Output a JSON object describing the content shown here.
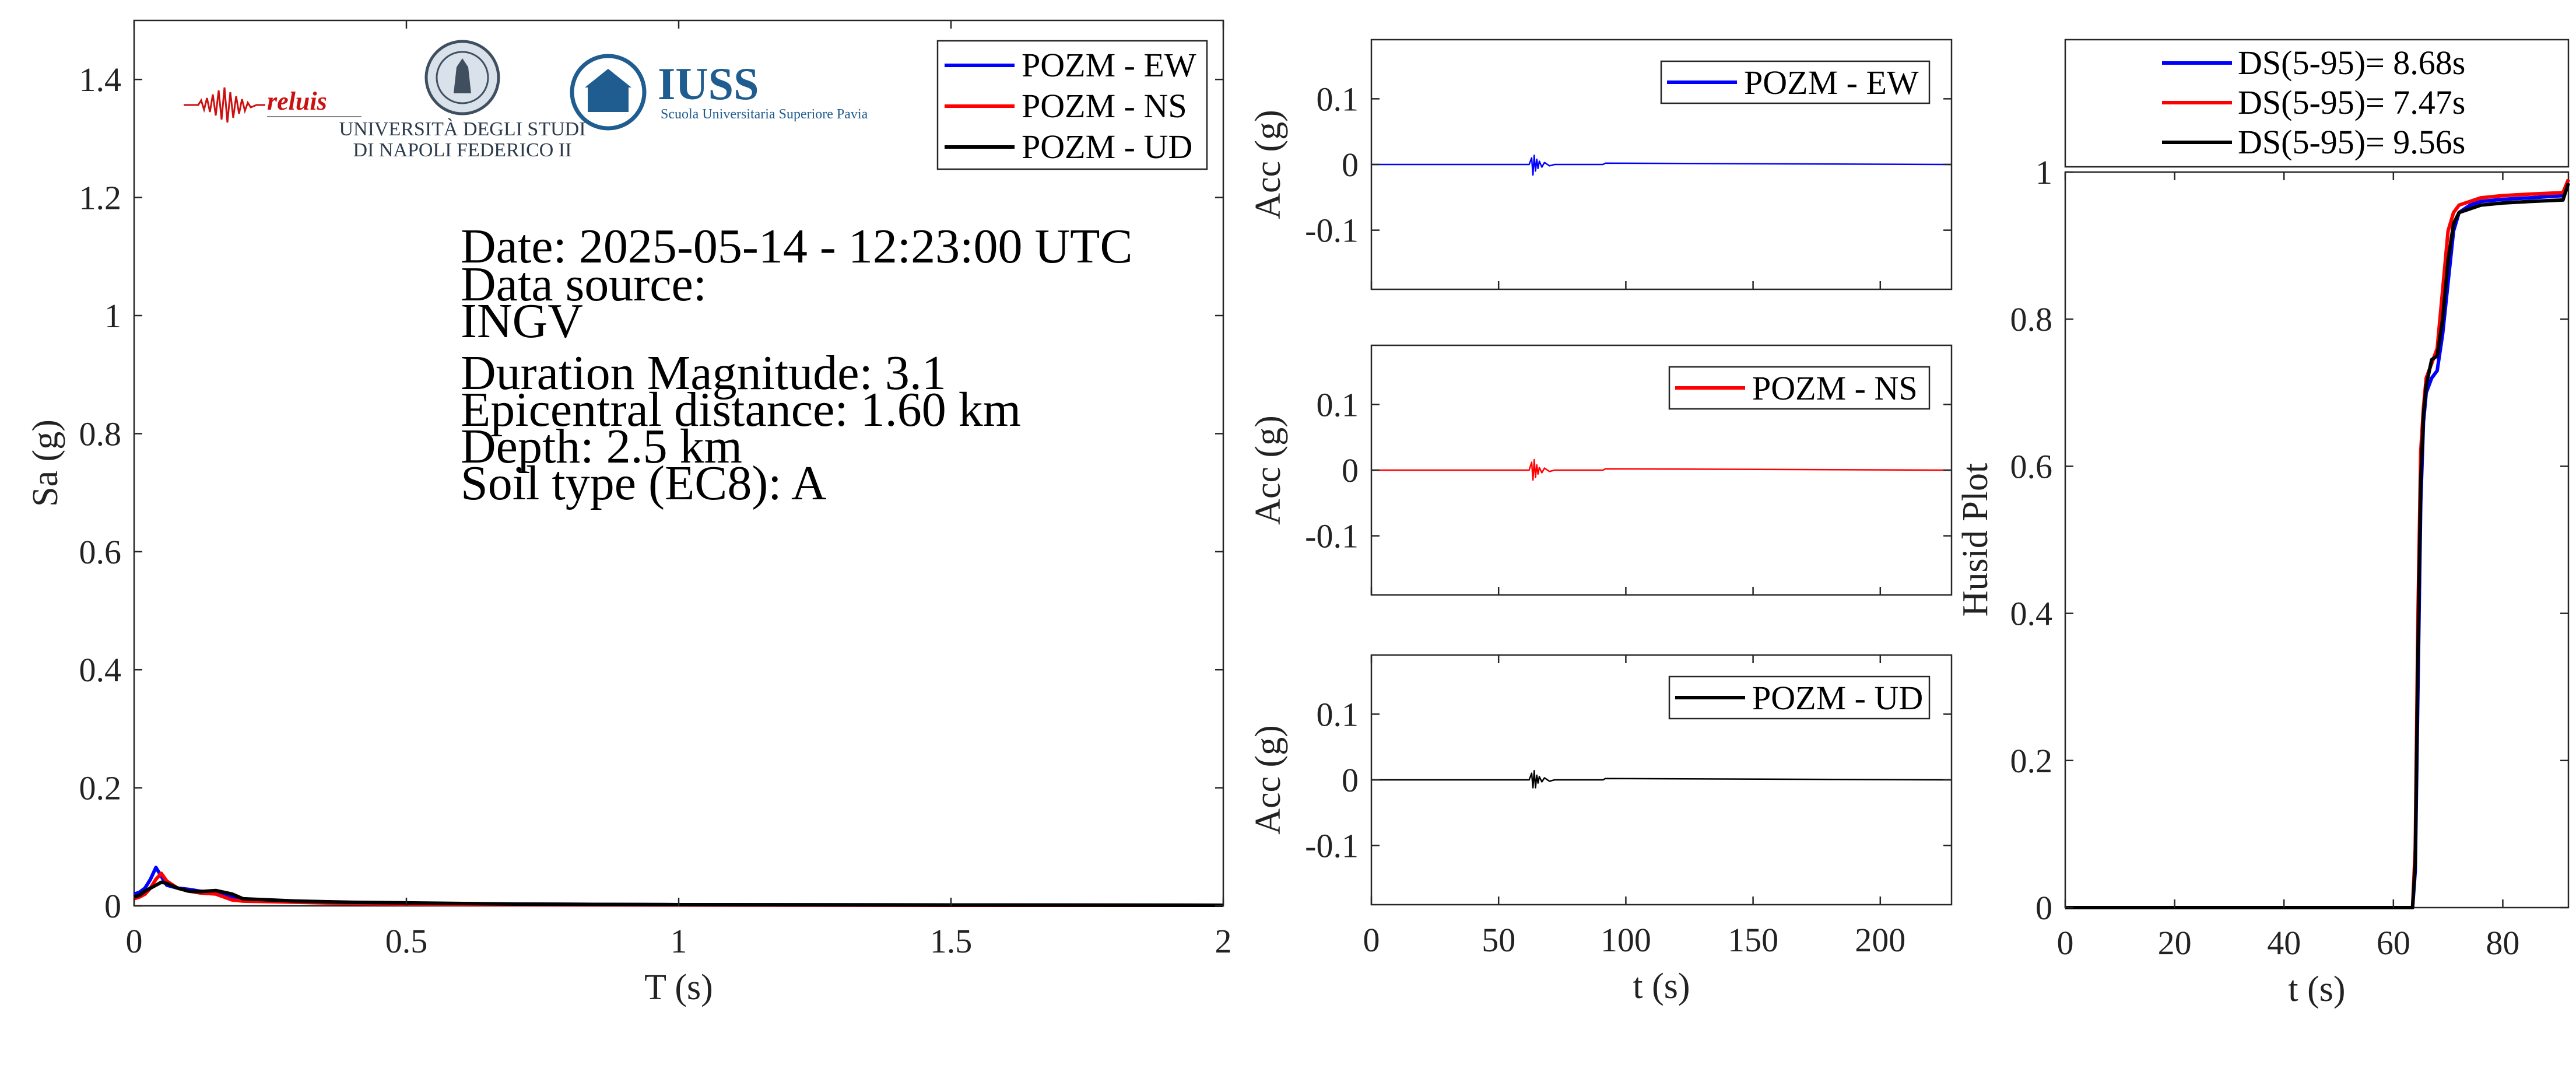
{
  "colors": {
    "ew": "#0000ff",
    "ns": "#ff0000",
    "ud": "#000000",
    "axis": "#262626",
    "logo_blue": "#1f5c8f",
    "logo_red": "#cc1010"
  },
  "logos": {
    "reluis": "reluis",
    "unina_line1": "UNIVERSITÀ DEGLI STUDI",
    "unina_line2": "DI NAPOLI FEDERICO II",
    "iuss": "IUSS",
    "iuss_sub": "Scuola Universitaria Superiore Pavia"
  },
  "info": {
    "date": "Date: 2025-05-14 - 12:23:00 UTC",
    "source_label": "Data source:",
    "source": "INGV",
    "magnitude": "Duration Magnitude: 3.1",
    "distance": "Epicentral distance: 1.60 km",
    "depth": "Depth: 2.5 km",
    "soil": "Soil type (EC8): A"
  },
  "chart_data": [
    {
      "type": "line",
      "xlabel": "T (s)",
      "ylabel": "Sa (g)",
      "xlim": [
        0,
        2
      ],
      "ylim": [
        0,
        1.5
      ],
      "xticks": [
        0,
        0.5,
        1,
        1.5,
        2
      ],
      "xtick_labels": [
        "0",
        "0.5",
        "1",
        "1.5",
        "2"
      ],
      "yticks": [
        0,
        0.2,
        0.4,
        0.6,
        0.8,
        1,
        1.2,
        1.4
      ],
      "ytick_labels": [
        "0",
        "0.2",
        "0.4",
        "0.6",
        "0.8",
        "1",
        "1.2",
        "1.4"
      ],
      "legend": "top-right",
      "series": [
        {
          "name": "POZM - EW",
          "color": "#0000ff",
          "x": [
            0,
            0.01,
            0.02,
            0.03,
            0.04,
            0.05,
            0.06,
            0.08,
            0.1,
            0.12,
            0.15,
            0.18,
            0.2,
            0.25,
            0.3,
            0.4,
            0.5,
            0.7,
            1.0,
            1.5,
            2.0
          ],
          "y": [
            0.02,
            0.023,
            0.03,
            0.045,
            0.065,
            0.05,
            0.035,
            0.03,
            0.028,
            0.025,
            0.022,
            0.015,
            0.012,
            0.009,
            0.007,
            0.005,
            0.004,
            0.003,
            0.002,
            0.0015,
            0.001
          ]
        },
        {
          "name": "POZM - NS",
          "color": "#ff0000",
          "x": [
            0,
            0.01,
            0.02,
            0.03,
            0.04,
            0.05,
            0.06,
            0.08,
            0.1,
            0.12,
            0.15,
            0.18,
            0.2,
            0.25,
            0.3,
            0.4,
            0.5,
            0.7,
            1.0,
            1.5,
            2.0
          ],
          "y": [
            0.012,
            0.015,
            0.02,
            0.03,
            0.045,
            0.055,
            0.042,
            0.03,
            0.025,
            0.022,
            0.02,
            0.01,
            0.008,
            0.007,
            0.006,
            0.004,
            0.003,
            0.002,
            0.0015,
            0.001,
            0.001
          ]
        },
        {
          "name": "POZM - UD",
          "color": "#000000",
          "x": [
            0,
            0.01,
            0.02,
            0.03,
            0.04,
            0.05,
            0.06,
            0.08,
            0.1,
            0.12,
            0.15,
            0.18,
            0.2,
            0.25,
            0.3,
            0.4,
            0.5,
            0.7,
            1.0,
            1.5,
            2.0
          ],
          "y": [
            0.015,
            0.018,
            0.025,
            0.03,
            0.035,
            0.04,
            0.038,
            0.03,
            0.025,
            0.024,
            0.026,
            0.02,
            0.012,
            0.01,
            0.008,
            0.006,
            0.005,
            0.003,
            0.002,
            0.0015,
            0.001
          ]
        }
      ]
    },
    {
      "type": "line",
      "xlabel": "",
      "ylabel": "Acc (g)",
      "xlim": [
        0,
        228
      ],
      "ylim": [
        -0.19,
        0.19
      ],
      "yticks": [
        0.1,
        0,
        -0.1
      ],
      "ytick_labels": [
        "0.1",
        "0",
        "-0.1"
      ],
      "legend": "top-right",
      "series": [
        {
          "name": "POZM - EW",
          "color": "#0000ff",
          "x": [
            0,
            62,
            63,
            63.5,
            64,
            64.5,
            65,
            65.5,
            66,
            67,
            68,
            70,
            72,
            91,
            92,
            228
          ],
          "y": [
            0,
            0,
            0.01,
            -0.016,
            0.014,
            -0.01,
            0.008,
            -0.006,
            0.005,
            -0.004,
            0.003,
            -0.002,
            0,
            0,
            0.002,
            0
          ]
        }
      ]
    },
    {
      "type": "line",
      "xlabel": "",
      "ylabel": "Acc (g)",
      "xlim": [
        0,
        228
      ],
      "ylim": [
        -0.19,
        0.19
      ],
      "yticks": [
        0.1,
        0,
        -0.1
      ],
      "ytick_labels": [
        "0.1",
        "0",
        "-0.1"
      ],
      "legend": "top-right",
      "series": [
        {
          "name": "POZM - NS",
          "color": "#ff0000",
          "x": [
            0,
            62,
            63,
            63.5,
            64,
            64.5,
            65,
            65.5,
            66,
            67,
            68,
            70,
            72,
            91,
            92,
            228
          ],
          "y": [
            0,
            0,
            0.012,
            -0.015,
            0.016,
            -0.011,
            0.008,
            -0.006,
            0.004,
            -0.004,
            0.003,
            -0.002,
            0,
            0,
            0.002,
            0
          ]
        }
      ]
    },
    {
      "type": "line",
      "xlabel": "t (s)",
      "ylabel": "Acc (g)",
      "xlim": [
        0,
        228
      ],
      "ylim": [
        -0.19,
        0.19
      ],
      "xticks": [
        0,
        50,
        100,
        150,
        200
      ],
      "xtick_labels": [
        "0",
        "50",
        "100",
        "150",
        "200"
      ],
      "yticks": [
        0.1,
        0,
        -0.1
      ],
      "ytick_labels": [
        "0.1",
        "0",
        "-0.1"
      ],
      "legend": "top-right",
      "series": [
        {
          "name": "POZM - UD",
          "color": "#000000",
          "x": [
            0,
            62,
            63,
            63.5,
            64,
            64.5,
            65,
            65.5,
            66,
            67,
            68,
            70,
            72,
            91,
            92,
            228
          ],
          "y": [
            0,
            0,
            0.01,
            -0.012,
            0.014,
            -0.012,
            0.007,
            -0.005,
            0.005,
            -0.003,
            0.003,
            -0.002,
            0,
            0,
            0.002,
            0
          ]
        }
      ]
    },
    {
      "type": "line",
      "xlabel": "t (s)",
      "ylabel": "Husid Plot",
      "xlim": [
        0,
        92
      ],
      "ylim": [
        0,
        1
      ],
      "xticks": [
        0,
        20,
        40,
        60,
        80
      ],
      "xtick_labels": [
        "0",
        "20",
        "40",
        "60",
        "80"
      ],
      "yticks": [
        0,
        0.2,
        0.4,
        0.6,
        0.8,
        1
      ],
      "ytick_labels": [
        "0",
        "0.2",
        "0.4",
        "0.6",
        "0.8",
        "1"
      ],
      "legend": "top",
      "series": [
        {
          "name": "DS(5-95)= 8.68s",
          "color": "#0000ff",
          "x": [
            0,
            63.5,
            64,
            64.5,
            65,
            65.5,
            66,
            67,
            68,
            69,
            70,
            71,
            72,
            74,
            76,
            80,
            85,
            91,
            92
          ],
          "y": [
            0,
            0,
            0.05,
            0.3,
            0.55,
            0.66,
            0.7,
            0.72,
            0.73,
            0.78,
            0.85,
            0.92,
            0.945,
            0.955,
            0.96,
            0.963,
            0.965,
            0.968,
            0.99
          ]
        },
        {
          "name": "DS(5-95)= 7.47s",
          "color": "#ff0000",
          "x": [
            0,
            63.5,
            64,
            64.5,
            65,
            65.5,
            66,
            67,
            68,
            69,
            70,
            71,
            72,
            74,
            76,
            80,
            85,
            91,
            92
          ],
          "y": [
            0,
            0,
            0.08,
            0.4,
            0.62,
            0.68,
            0.72,
            0.74,
            0.76,
            0.84,
            0.92,
            0.945,
            0.955,
            0.96,
            0.965,
            0.968,
            0.97,
            0.972,
            0.99
          ]
        },
        {
          "name": "DS(5-95)= 9.56s",
          "color": "#000000",
          "x": [
            0,
            63.5,
            64,
            64.5,
            65,
            65.5,
            66,
            67,
            68,
            69,
            70,
            71,
            72,
            74,
            76,
            80,
            85,
            91,
            92
          ],
          "y": [
            0,
            0,
            0.06,
            0.35,
            0.58,
            0.67,
            0.71,
            0.745,
            0.75,
            0.8,
            0.88,
            0.93,
            0.945,
            0.95,
            0.955,
            0.958,
            0.96,
            0.962,
            0.985
          ]
        }
      ]
    }
  ]
}
